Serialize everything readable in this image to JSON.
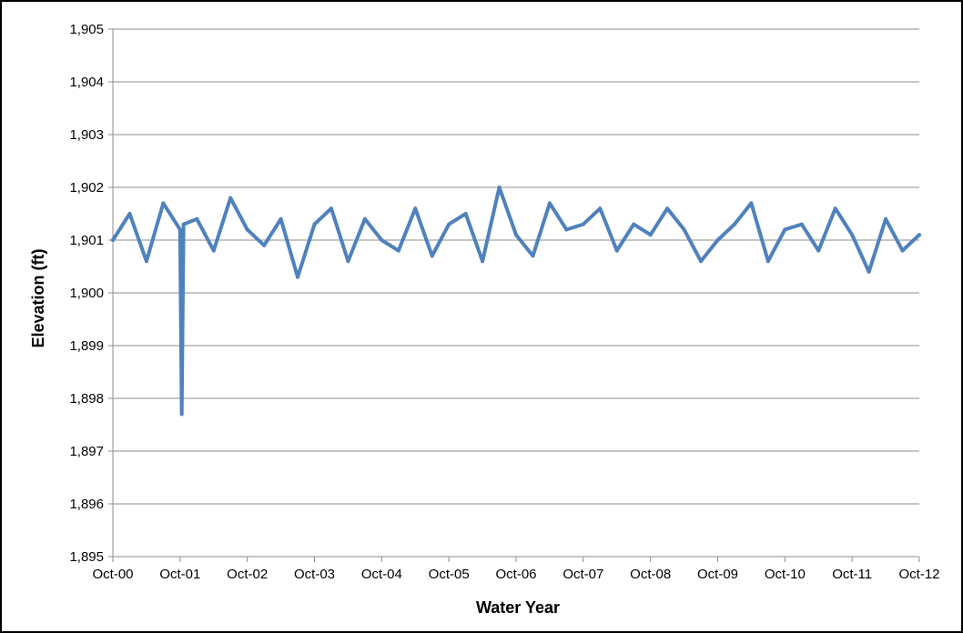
{
  "chart_data": {
    "type": "line",
    "title": "",
    "xlabel": "Water Year",
    "ylabel": "Elevation (ft)",
    "ylim": [
      1895,
      1905
    ],
    "y_ticks": [
      1895,
      1896,
      1897,
      1898,
      1899,
      1900,
      1901,
      1902,
      1903,
      1904,
      1905
    ],
    "y_tick_labels": [
      "1,895",
      "1,896",
      "1,897",
      "1,898",
      "1,899",
      "1,900",
      "1,901",
      "1,902",
      "1,903",
      "1,904",
      "1,905"
    ],
    "x_ticks": [
      "Oct-00",
      "Oct-01",
      "Oct-02",
      "Oct-03",
      "Oct-04",
      "Oct-05",
      "Oct-06",
      "Oct-07",
      "Oct-08",
      "Oct-09",
      "Oct-10",
      "Oct-11",
      "Oct-12"
    ],
    "xlim": [
      "2000-10",
      "2012-10"
    ],
    "grid": "horizontal",
    "legend": "none",
    "series_color": "#4F81BD",
    "series": [
      {
        "x": [
          "2000-10",
          "2001-01",
          "2001-04",
          "2001-07",
          "2001-10",
          "2001-10-10",
          "2001-10-20",
          "2002-01",
          "2002-04",
          "2002-07",
          "2002-10",
          "2003-01",
          "2003-04",
          "2003-07",
          "2003-10",
          "2004-01",
          "2004-04",
          "2004-07",
          "2004-10",
          "2005-01",
          "2005-04",
          "2005-07",
          "2005-10",
          "2006-01",
          "2006-04",
          "2006-07",
          "2006-10",
          "2007-01",
          "2007-04",
          "2007-07",
          "2007-10",
          "2008-01",
          "2008-04",
          "2008-07",
          "2008-10",
          "2009-01",
          "2009-04",
          "2009-07",
          "2009-10",
          "2010-01",
          "2010-04",
          "2010-07",
          "2010-10",
          "2011-01",
          "2011-04",
          "2011-07",
          "2011-10",
          "2012-01",
          "2012-04",
          "2012-07",
          "2012-10"
        ],
        "values": [
          1901.0,
          1901.5,
          1900.6,
          1901.7,
          1901.2,
          1897.7,
          1901.3,
          1901.4,
          1900.8,
          1901.8,
          1901.2,
          1900.9,
          1901.4,
          1900.3,
          1901.3,
          1901.6,
          1900.6,
          1901.4,
          1901.0,
          1900.8,
          1901.6,
          1900.7,
          1901.3,
          1901.5,
          1900.6,
          1902.0,
          1901.1,
          1900.7,
          1901.7,
          1901.2,
          1901.3,
          1901.6,
          1900.8,
          1901.3,
          1901.1,
          1901.6,
          1901.2,
          1900.6,
          1901.0,
          1901.3,
          1901.7,
          1900.6,
          1901.2,
          1901.3,
          1900.8,
          1901.6,
          1901.1,
          1900.4,
          1901.4,
          1900.8,
          1901.1
        ]
      }
    ]
  }
}
